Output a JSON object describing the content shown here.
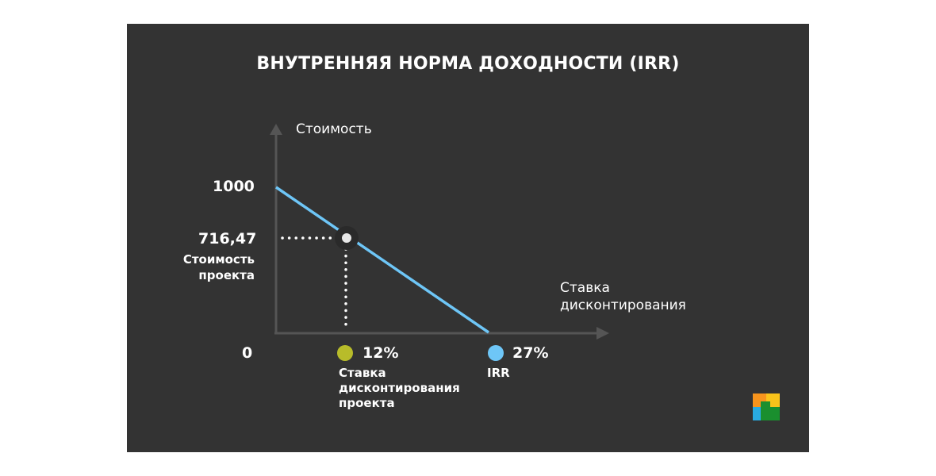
{
  "title": "ВНУТРЕННЯЯ НОРМА ДОХОДНОСТИ (IRR)",
  "colors": {
    "background": "#333333",
    "line": "#6ec6f7",
    "rate_marker": "#b8bc2a",
    "irr_marker": "#6ec6f7",
    "axis": "#555555",
    "text": "#ffffff"
  },
  "axes": {
    "y_label": "Стоимость",
    "x_label": "Ставка дисконтирования"
  },
  "ticks": {
    "y_max": "1000",
    "y_project": "716,47",
    "zero": "0"
  },
  "project_value_label": "Стоимость проекта",
  "rate": {
    "value": "12%",
    "label": "Ставка дисконтирования проекта"
  },
  "irr": {
    "value": "27%",
    "label": "IRR"
  },
  "chart_data": {
    "type": "line",
    "title": "ВНУТРЕННЯЯ НОРМА ДОХОДНОСТИ (IRR)",
    "xlabel": "Ставка дисконтирования",
    "ylabel": "Стоимость",
    "series": [
      {
        "x": [
          0,
          12,
          27
        ],
        "y": [
          1000,
          716.47,
          0
        ]
      }
    ],
    "highlight_point": {
      "x": 12,
      "y": 716.47
    },
    "annotations": [
      "12%",
      "27%",
      "716,47",
      "1000",
      "0"
    ],
    "grid": false
  },
  "logo": {
    "name": "logo-icon"
  }
}
